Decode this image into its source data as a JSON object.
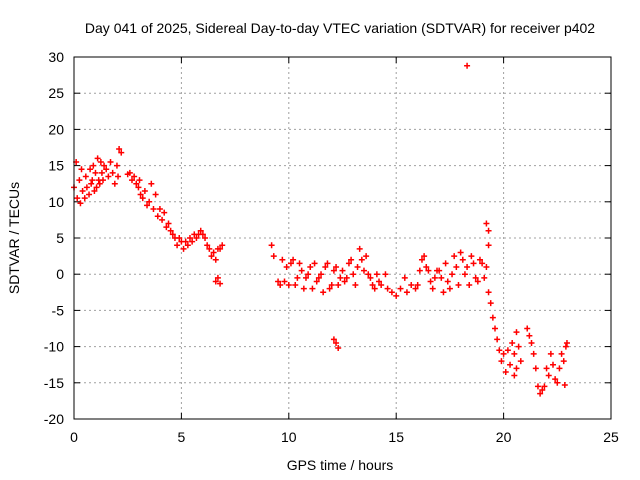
{
  "chart_data": {
    "type": "scatter",
    "title": "Day 041 of 2025, Sidereal Day-to-day VTEC variation (SDTVAR) for receiver p402",
    "xlabel": "GPS time / hours",
    "ylabel": "SDTVAR / TECUs",
    "xlim": [
      0,
      25
    ],
    "ylim": [
      -20,
      30
    ],
    "xticks": [
      0,
      5,
      10,
      15,
      20,
      25
    ],
    "yticks": [
      -20,
      -15,
      -10,
      -5,
      0,
      5,
      10,
      15,
      20,
      25,
      30
    ],
    "grid": true,
    "marker": "+",
    "colors": {
      "series": "#ff0000",
      "grid": "#a0a0a0",
      "axis": "#000000",
      "background": "#ffffff"
    },
    "series": [
      {
        "name": "SDTVAR",
        "points": [
          [
            0.0,
            12.0
          ],
          [
            0.1,
            15.5
          ],
          [
            0.15,
            10.5
          ],
          [
            0.25,
            13.0
          ],
          [
            0.3,
            9.8
          ],
          [
            0.35,
            14.5
          ],
          [
            0.4,
            11.5
          ],
          [
            0.5,
            10.5
          ],
          [
            0.55,
            13.5
          ],
          [
            0.6,
            12.0
          ],
          [
            0.7,
            11.0
          ],
          [
            0.75,
            14.5
          ],
          [
            0.8,
            12.5
          ],
          [
            0.85,
            13.0
          ],
          [
            0.9,
            15.0
          ],
          [
            0.95,
            11.5
          ],
          [
            1.0,
            14.0
          ],
          [
            1.05,
            12.0
          ],
          [
            1.1,
            16.0
          ],
          [
            1.15,
            13.0
          ],
          [
            1.2,
            12.5
          ],
          [
            1.25,
            15.5
          ],
          [
            1.3,
            14.0
          ],
          [
            1.35,
            13.0
          ],
          [
            1.4,
            15.0
          ],
          [
            1.5,
            14.5
          ],
          [
            1.6,
            13.5
          ],
          [
            1.7,
            15.5
          ],
          [
            1.8,
            14.0
          ],
          [
            1.9,
            12.5
          ],
          [
            2.0,
            15.0
          ],
          [
            2.05,
            13.5
          ],
          [
            2.1,
            17.3
          ],
          [
            2.2,
            16.8
          ],
          [
            2.5,
            13.8
          ],
          [
            2.6,
            14.0
          ],
          [
            2.7,
            13.0
          ],
          [
            2.8,
            13.5
          ],
          [
            2.9,
            12.5
          ],
          [
            3.0,
            12.0
          ],
          [
            3.05,
            13.0
          ],
          [
            3.1,
            11.0
          ],
          [
            3.2,
            10.5
          ],
          [
            3.3,
            11.5
          ],
          [
            3.4,
            9.5
          ],
          [
            3.5,
            10.0
          ],
          [
            3.6,
            12.5
          ],
          [
            3.7,
            9.0
          ],
          [
            3.8,
            11.0
          ],
          [
            3.9,
            8.0
          ],
          [
            4.0,
            9.0
          ],
          [
            4.1,
            7.5
          ],
          [
            4.2,
            8.5
          ],
          [
            4.3,
            6.5
          ],
          [
            4.4,
            7.0
          ],
          [
            4.5,
            6.0
          ],
          [
            4.6,
            5.5
          ],
          [
            4.7,
            5.0
          ],
          [
            4.8,
            4.0
          ],
          [
            4.9,
            5.0
          ],
          [
            5.0,
            4.5
          ],
          [
            5.1,
            3.5
          ],
          [
            5.2,
            4.5
          ],
          [
            5.3,
            4.0
          ],
          [
            5.4,
            5.0
          ],
          [
            5.5,
            4.5
          ],
          [
            5.6,
            5.5
          ],
          [
            5.7,
            5.0
          ],
          [
            5.8,
            5.5
          ],
          [
            5.9,
            6.0
          ],
          [
            6.0,
            5.5
          ],
          [
            6.1,
            5.0
          ],
          [
            6.2,
            4.0
          ],
          [
            6.3,
            3.5
          ],
          [
            6.4,
            2.5
          ],
          [
            6.5,
            3.0
          ],
          [
            6.6,
            2.0
          ],
          [
            6.7,
            3.5
          ],
          [
            6.8,
            3.5
          ],
          [
            6.9,
            4.0
          ],
          [
            6.6,
            -1.0
          ],
          [
            6.7,
            -0.5
          ],
          [
            6.8,
            -1.3
          ],
          [
            9.2,
            4.0
          ],
          [
            9.3,
            2.5
          ],
          [
            9.5,
            -1.0
          ],
          [
            9.6,
            -1.5
          ],
          [
            9.7,
            2.0
          ],
          [
            9.8,
            -1.0
          ],
          [
            9.9,
            1.0
          ],
          [
            10.0,
            -1.5
          ],
          [
            10.1,
            1.5
          ],
          [
            10.2,
            2.0
          ],
          [
            10.3,
            -1.5
          ],
          [
            10.4,
            -0.5
          ],
          [
            10.5,
            1.5
          ],
          [
            10.6,
            0.5
          ],
          [
            10.7,
            -2.0
          ],
          [
            10.8,
            -0.5
          ],
          [
            10.9,
            0.0
          ],
          [
            11.0,
            1.0
          ],
          [
            11.1,
            -2.0
          ],
          [
            11.2,
            1.5
          ],
          [
            11.3,
            -1.0
          ],
          [
            11.4,
            -0.5
          ],
          [
            11.5,
            0.0
          ],
          [
            11.6,
            -2.5
          ],
          [
            11.7,
            1.0
          ],
          [
            11.8,
            1.5
          ],
          [
            11.9,
            -2.0
          ],
          [
            12.0,
            -1.5
          ],
          [
            12.1,
            0.5
          ],
          [
            12.2,
            1.0
          ],
          [
            12.3,
            -1.5
          ],
          [
            12.4,
            -0.5
          ],
          [
            12.5,
            0.5
          ],
          [
            12.6,
            -1.0
          ],
          [
            12.7,
            -0.5
          ],
          [
            12.8,
            1.5
          ],
          [
            12.9,
            2.0
          ],
          [
            13.0,
            0.0
          ],
          [
            13.1,
            -1.5
          ],
          [
            13.2,
            1.0
          ],
          [
            13.3,
            3.5
          ],
          [
            13.4,
            2.0
          ],
          [
            13.5,
            0.5
          ],
          [
            13.6,
            2.5
          ],
          [
            13.7,
            0.0
          ],
          [
            13.8,
            -0.5
          ],
          [
            13.9,
            -1.5
          ],
          [
            14.0,
            -2.0
          ],
          [
            14.1,
            0.0
          ],
          [
            14.2,
            -1.0
          ],
          [
            14.3,
            -1.5
          ],
          [
            14.5,
            0.0
          ],
          [
            14.6,
            -2.0
          ],
          [
            14.8,
            -2.5
          ],
          [
            15.0,
            -3.0
          ],
          [
            15.2,
            -2.0
          ],
          [
            15.4,
            -0.5
          ],
          [
            15.5,
            -2.5
          ],
          [
            15.7,
            -1.5
          ],
          [
            15.9,
            -2.0
          ],
          [
            16.0,
            -1.5
          ],
          [
            16.1,
            0.5
          ],
          [
            16.2,
            2.0
          ],
          [
            16.3,
            2.5
          ],
          [
            16.4,
            1.0
          ],
          [
            16.5,
            0.5
          ],
          [
            16.6,
            -1.0
          ],
          [
            16.7,
            -2.0
          ],
          [
            16.8,
            -0.5
          ],
          [
            16.9,
            0.5
          ],
          [
            17.0,
            0.5
          ],
          [
            17.1,
            -0.5
          ],
          [
            17.2,
            -2.5
          ],
          [
            17.3,
            1.5
          ],
          [
            17.4,
            -1.0
          ],
          [
            17.5,
            -2.0
          ],
          [
            17.6,
            0.0
          ],
          [
            17.7,
            2.5
          ],
          [
            17.8,
            1.0
          ],
          [
            17.9,
            -1.5
          ],
          [
            18.0,
            3.0
          ],
          [
            18.1,
            2.0
          ],
          [
            18.2,
            0.0
          ],
          [
            18.3,
            1.0
          ],
          [
            18.4,
            -1.5
          ],
          [
            18.5,
            2.5
          ],
          [
            18.6,
            1.5
          ],
          [
            18.7,
            -0.5
          ],
          [
            18.8,
            -1.0
          ],
          [
            18.9,
            2.0
          ],
          [
            19.0,
            1.5
          ],
          [
            19.1,
            -0.5
          ],
          [
            19.2,
            1.0
          ],
          [
            19.3,
            -2.5
          ],
          [
            19.4,
            -4.0
          ],
          [
            19.5,
            -6.0
          ],
          [
            19.6,
            -7.5
          ],
          [
            19.7,
            -9.0
          ],
          [
            12.1,
            -9.0
          ],
          [
            12.2,
            -9.5
          ],
          [
            12.3,
            -10.2
          ],
          [
            18.3,
            28.8
          ],
          [
            19.2,
            7.0
          ],
          [
            19.3,
            6.0
          ],
          [
            19.3,
            4.0
          ],
          [
            19.8,
            -10.5
          ],
          [
            19.9,
            -12.0
          ],
          [
            20.0,
            -11.0
          ],
          [
            20.1,
            -13.5
          ],
          [
            20.2,
            -10.5
          ],
          [
            20.3,
            -12.5
          ],
          [
            20.4,
            -9.5
          ],
          [
            20.5,
            -11.0
          ],
          [
            20.6,
            -8.0
          ],
          [
            20.7,
            -10.0
          ],
          [
            20.8,
            -12.0
          ],
          [
            20.6,
            -13.0
          ],
          [
            20.5,
            -14.0
          ],
          [
            21.1,
            -7.5
          ],
          [
            21.2,
            -8.5
          ],
          [
            21.3,
            -9.5
          ],
          [
            21.4,
            -11.0
          ],
          [
            21.5,
            -13.0
          ],
          [
            21.6,
            -15.5
          ],
          [
            21.7,
            -16.5
          ],
          [
            21.8,
            -16.0
          ],
          [
            21.9,
            -15.5
          ],
          [
            22.0,
            -13.0
          ],
          [
            22.1,
            -14.0
          ],
          [
            22.2,
            -11.0
          ],
          [
            22.3,
            -12.5
          ],
          [
            22.4,
            -14.5
          ],
          [
            22.5,
            -15.0
          ],
          [
            22.6,
            -13.0
          ],
          [
            22.7,
            -11.0
          ],
          [
            22.8,
            -12.0
          ],
          [
            22.85,
            -15.3
          ],
          [
            22.9,
            -10.0
          ],
          [
            22.95,
            -9.5
          ]
        ]
      }
    ]
  }
}
